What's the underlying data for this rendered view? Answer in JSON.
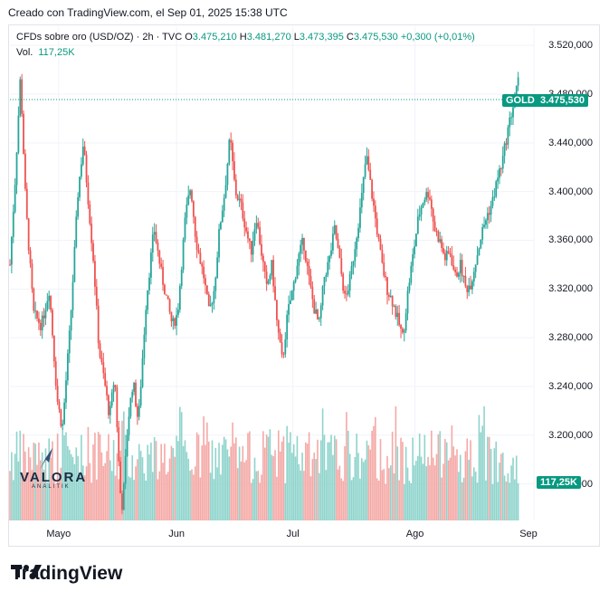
{
  "caption": "Creado con TradingView.com, el Sep 01, 2025 15:38 UTC",
  "legend": {
    "symbol": "CFDs sobre oro (USD/OZ) · 2h · TVC",
    "o_label": "O",
    "o": "3.475,210",
    "h_label": "H",
    "h": "3.481,270",
    "l_label": "L",
    "l": "3.473,395",
    "c_label": "C",
    "c": "3.475,530",
    "change": "+0,300 (+0,01%)",
    "vol_label": "Vol.",
    "vol_value": "117,25K"
  },
  "tags": {
    "gold_label": "GOLD",
    "price": "3.475,530",
    "volume": "117,25K",
    "price_value": 3475.53
  },
  "footer": {
    "brand": "TradingView"
  },
  "watermark": {
    "text": "VALORA",
    "sub": "ANALITIK"
  },
  "colors": {
    "up": "#26a69a",
    "down": "#ef5350",
    "volume_up": "#8fd4cc",
    "volume_down": "#f4a9a6",
    "accent": "#089981"
  },
  "chart_data": {
    "type": "candlestick",
    "y_ticks": [
      "3.520,000",
      "3.480,000",
      "3.440,000",
      "3.400,000",
      "3.360,000",
      "3.320,000",
      "3.280,000",
      "3.240,000",
      "3.200,000",
      "3.160,000"
    ],
    "y_tick_values": [
      3520,
      3480,
      3440,
      3400,
      3360,
      3320,
      3280,
      3240,
      3200,
      3160
    ],
    "ylim": [
      3130,
      3535
    ],
    "x_ticks": [
      "Mayo",
      "Jun",
      "Jul",
      "Ago",
      "Sep"
    ],
    "x_tick_positions": [
      0.093,
      0.318,
      0.54,
      0.773,
      1.0
    ],
    "price_path": [
      [
        0.0,
        3340
      ],
      [
        0.01,
        3410
      ],
      [
        0.02,
        3495
      ],
      [
        0.03,
        3390
      ],
      [
        0.045,
        3300
      ],
      [
        0.06,
        3290
      ],
      [
        0.075,
        3320
      ],
      [
        0.09,
        3230
      ],
      [
        0.1,
        3205
      ],
      [
        0.115,
        3290
      ],
      [
        0.13,
        3400
      ],
      [
        0.14,
        3440
      ],
      [
        0.15,
        3390
      ],
      [
        0.16,
        3340
      ],
      [
        0.17,
        3270
      ],
      [
        0.18,
        3245
      ],
      [
        0.19,
        3215
      ],
      [
        0.2,
        3250
      ],
      [
        0.21,
        3155
      ],
      [
        0.215,
        3140
      ],
      [
        0.225,
        3210
      ],
      [
        0.235,
        3245
      ],
      [
        0.245,
        3210
      ],
      [
        0.26,
        3310
      ],
      [
        0.275,
        3370
      ],
      [
        0.29,
        3330
      ],
      [
        0.3,
        3310
      ],
      [
        0.31,
        3290
      ],
      [
        0.32,
        3300
      ],
      [
        0.335,
        3380
      ],
      [
        0.345,
        3405
      ],
      [
        0.355,
        3360
      ],
      [
        0.37,
        3330
      ],
      [
        0.38,
        3300
      ],
      [
        0.39,
        3320
      ],
      [
        0.4,
        3370
      ],
      [
        0.41,
        3400
      ],
      [
        0.42,
        3445
      ],
      [
        0.43,
        3400
      ],
      [
        0.44,
        3390
      ],
      [
        0.45,
        3370
      ],
      [
        0.46,
        3350
      ],
      [
        0.47,
        3380
      ],
      [
        0.48,
        3350
      ],
      [
        0.49,
        3320
      ],
      [
        0.5,
        3340
      ],
      [
        0.51,
        3290
      ],
      [
        0.52,
        3260
      ],
      [
        0.53,
        3300
      ],
      [
        0.54,
        3320
      ],
      [
        0.55,
        3345
      ],
      [
        0.56,
        3360
      ],
      [
        0.57,
        3330
      ],
      [
        0.58,
        3305
      ],
      [
        0.59,
        3290
      ],
      [
        0.6,
        3330
      ],
      [
        0.61,
        3345
      ],
      [
        0.62,
        3370
      ],
      [
        0.63,
        3340
      ],
      [
        0.64,
        3310
      ],
      [
        0.65,
        3330
      ],
      [
        0.66,
        3360
      ],
      [
        0.67,
        3390
      ],
      [
        0.68,
        3430
      ],
      [
        0.69,
        3400
      ],
      [
        0.7,
        3370
      ],
      [
        0.71,
        3340
      ],
      [
        0.72,
        3320
      ],
      [
        0.73,
        3310
      ],
      [
        0.74,
        3295
      ],
      [
        0.75,
        3280
      ],
      [
        0.76,
        3320
      ],
      [
        0.77,
        3350
      ],
      [
        0.78,
        3380
      ],
      [
        0.79,
        3395
      ],
      [
        0.8,
        3400
      ],
      [
        0.81,
        3370
      ],
      [
        0.82,
        3360
      ],
      [
        0.83,
        3345
      ],
      [
        0.84,
        3350
      ],
      [
        0.85,
        3330
      ],
      [
        0.86,
        3340
      ],
      [
        0.87,
        3320
      ],
      [
        0.88,
        3325
      ],
      [
        0.89,
        3345
      ],
      [
        0.9,
        3365
      ],
      [
        0.91,
        3380
      ],
      [
        0.92,
        3390
      ],
      [
        0.93,
        3410
      ],
      [
        0.94,
        3425
      ],
      [
        0.95,
        3450
      ],
      [
        0.96,
        3470
      ],
      [
        0.97,
        3490
      ]
    ]
  }
}
